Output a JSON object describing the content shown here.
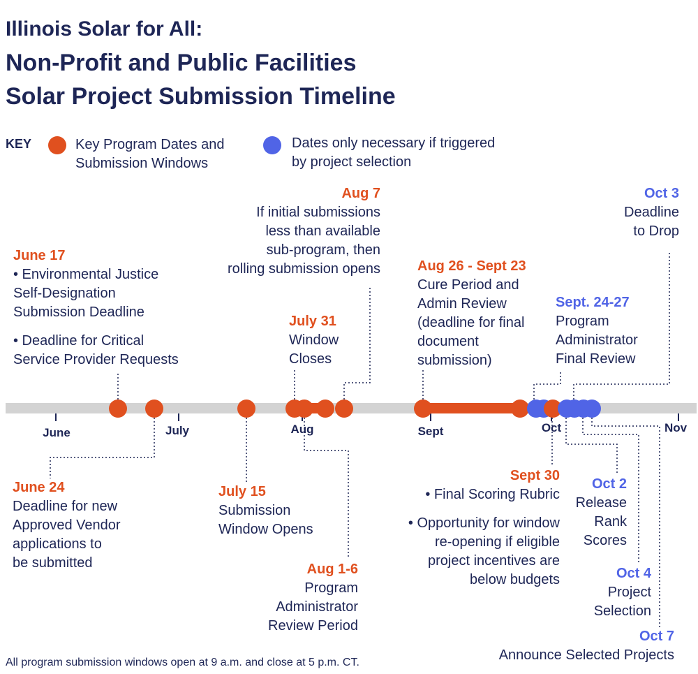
{
  "title": {
    "line1": "Illinois Solar for All:",
    "line2": "Non-Profit and Public Facilities",
    "line3": "Solar Project Submission Timeline"
  },
  "key": {
    "label": "KEY",
    "orange_label": [
      "Key Program Dates and",
      "Submission Windows"
    ],
    "blue_label": [
      "Dates only necessary if triggered",
      "by project selection"
    ]
  },
  "colors": {
    "orange": "#e0501f",
    "blue": "#5064e6",
    "navy": "#1e2656",
    "track": "#d3d3d3"
  },
  "months": [
    "June",
    "July",
    "Aug",
    "Sept",
    "Oct",
    "Nov"
  ],
  "events": {
    "june17": {
      "date": "June 17",
      "lines": [
        "• Environmental Justice",
        "Self-Designation",
        "Submission Deadline"
      ],
      "lines2": [
        "• Deadline for Critical",
        "Service Provider Requests"
      ]
    },
    "june24": {
      "date": "June 24",
      "lines": [
        "Deadline for new",
        "Approved Vendor",
        "applications to",
        "be submitted"
      ]
    },
    "july15": {
      "date": "July 15",
      "lines": [
        "Submission",
        "Window Opens"
      ]
    },
    "july31": {
      "date": "July 31",
      "lines": [
        "Window",
        "Closes"
      ]
    },
    "aug7": {
      "date": "Aug 7",
      "lines": [
        "If initial submissions",
        "less than available",
        "sub-program, then",
        "rolling submission opens"
      ]
    },
    "aug1_6": {
      "date": "Aug 1-6",
      "lines": [
        "Program",
        "Administrator",
        "Review Period"
      ]
    },
    "aug26": {
      "date": "Aug 26 - Sept 23",
      "lines": [
        "Cure Period and",
        "Admin Review",
        "(deadline for final",
        "document",
        "submission)"
      ]
    },
    "sept24": {
      "date": "Sept. 24-27",
      "lines": [
        "Program",
        "Administrator",
        "Final Review"
      ]
    },
    "oct3": {
      "date": "Oct 3",
      "lines": [
        "Deadline",
        "to Drop"
      ]
    },
    "sept30": {
      "date": "Sept 30",
      "lines": [
        "• Final Scoring Rubric"
      ],
      "lines2": [
        "• Opportunity for window",
        "re-opening if eligible",
        "project incentives are",
        "below budgets"
      ]
    },
    "oct2": {
      "date": "Oct 2",
      "lines": [
        "Release",
        "Rank",
        "Scores"
      ]
    },
    "oct4": {
      "date": "Oct 4",
      "lines": [
        "Project",
        "Selection"
      ]
    },
    "oct7": {
      "date": "Oct 7",
      "lines": [
        "Announce Selected Projects"
      ]
    }
  },
  "footnote": "All program submission windows open at 9 a.m. and close at 5 p.m. CT."
}
